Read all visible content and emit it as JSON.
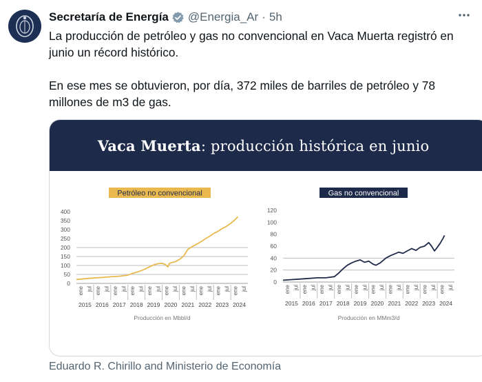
{
  "account": {
    "name": "Secretaría de Energía",
    "handle": "@Energia_Ar",
    "separator": "·",
    "time": "5h"
  },
  "tweet": {
    "paragraph1": "La producción de petróleo y gas no convencional en Vaca Muerta registró en junio un récord histórico.",
    "paragraph2": "En ese mes se obtuvieron, por día, 372 miles de barriles de petróleo y 78 millones de m3 de gas."
  },
  "card": {
    "title_bold": "Vaca Muerta",
    "title_rest": ": producción histórica en junio"
  },
  "attribution": "Eduardo R. Chirillo and Ministerio de Economía",
  "colors": {
    "oil": "#e9b94f",
    "gas": "#1e2a4a",
    "header_bg": "#1e2a4a",
    "grid": "#bdbdbd"
  },
  "icons": {
    "avatar": "coat-of-arms-icon",
    "verified": "verified-badge-icon",
    "more": "more-options-icon"
  },
  "chart_data": [
    {
      "type": "line",
      "title": "Petróleo no convencional",
      "xlabel": "Producción en Mbbl/d",
      "ylabel": "",
      "ylim": [
        0,
        400
      ],
      "yticks": [
        0,
        50,
        100,
        150,
        200,
        250,
        300,
        350,
        400
      ],
      "x_month_labels": [
        "ene",
        "jul"
      ],
      "x_year_labels": [
        "2015",
        "2016",
        "2017",
        "2018",
        "2019",
        "2020",
        "2021",
        "2022",
        "2023",
        "2024"
      ],
      "grid": "horizontal gridlines at 50, 100, 150, 200",
      "legend": "none",
      "series": [
        {
          "x": [
            "2015-01",
            "2015-07",
            "2016-01",
            "2016-07",
            "2017-01",
            "2017-07",
            "2018-01",
            "2018-04",
            "2018-07",
            "2018-10",
            "2019-01",
            "2019-04",
            "2019-07",
            "2019-10",
            "2020-01",
            "2020-03",
            "2020-05",
            "2020-06",
            "2020-07",
            "2020-10",
            "2021-01",
            "2021-04",
            "2021-07",
            "2021-10",
            "2022-01",
            "2022-04",
            "2022-07",
            "2022-10",
            "2023-01",
            "2023-04",
            "2023-07",
            "2023-10",
            "2024-01",
            "2024-04",
            "2024-06"
          ],
          "values": [
            22,
            26,
            30,
            33,
            37,
            40,
            46,
            55,
            62,
            70,
            80,
            92,
            103,
            110,
            112,
            106,
            92,
            110,
            115,
            120,
            133,
            152,
            190,
            205,
            218,
            232,
            248,
            262,
            278,
            290,
            306,
            318,
            335,
            355,
            372
          ]
        }
      ]
    },
    {
      "type": "line",
      "title": "Gas no convencional",
      "xlabel": "Producción en MMm3/d",
      "ylabel": "",
      "ylim": [
        0,
        120
      ],
      "yticks": [
        0,
        20,
        40,
        60,
        80,
        100,
        120
      ],
      "x_month_labels": [
        "ene",
        "jul"
      ],
      "x_year_labels": [
        "2015",
        "2016",
        "2017",
        "2018",
        "2019",
        "2020",
        "2021",
        "2022",
        "2023",
        "2024"
      ],
      "grid": "horizontal gridlines at 20, 40",
      "legend": "none",
      "series": [
        {
          "x": [
            "2015-01",
            "2015-07",
            "2016-01",
            "2016-07",
            "2017-01",
            "2017-07",
            "2018-01",
            "2018-04",
            "2018-07",
            "2018-10",
            "2019-01",
            "2019-04",
            "2019-07",
            "2019-10",
            "2020-01",
            "2020-04",
            "2020-06",
            "2020-09",
            "2021-01",
            "2021-04",
            "2021-07",
            "2021-10",
            "2022-01",
            "2022-04",
            "2022-07",
            "2022-10",
            "2023-01",
            "2023-04",
            "2023-07",
            "2023-09",
            "2023-11",
            "2024-01",
            "2024-03",
            "2024-05",
            "2024-06"
          ],
          "values": [
            3,
            4,
            5,
            6,
            7,
            7,
            9,
            15,
            22,
            28,
            32,
            35,
            37,
            33,
            35,
            30,
            28,
            32,
            40,
            44,
            47,
            50,
            48,
            52,
            56,
            53,
            58,
            60,
            66,
            60,
            52,
            58,
            65,
            73,
            78
          ]
        }
      ]
    }
  ]
}
